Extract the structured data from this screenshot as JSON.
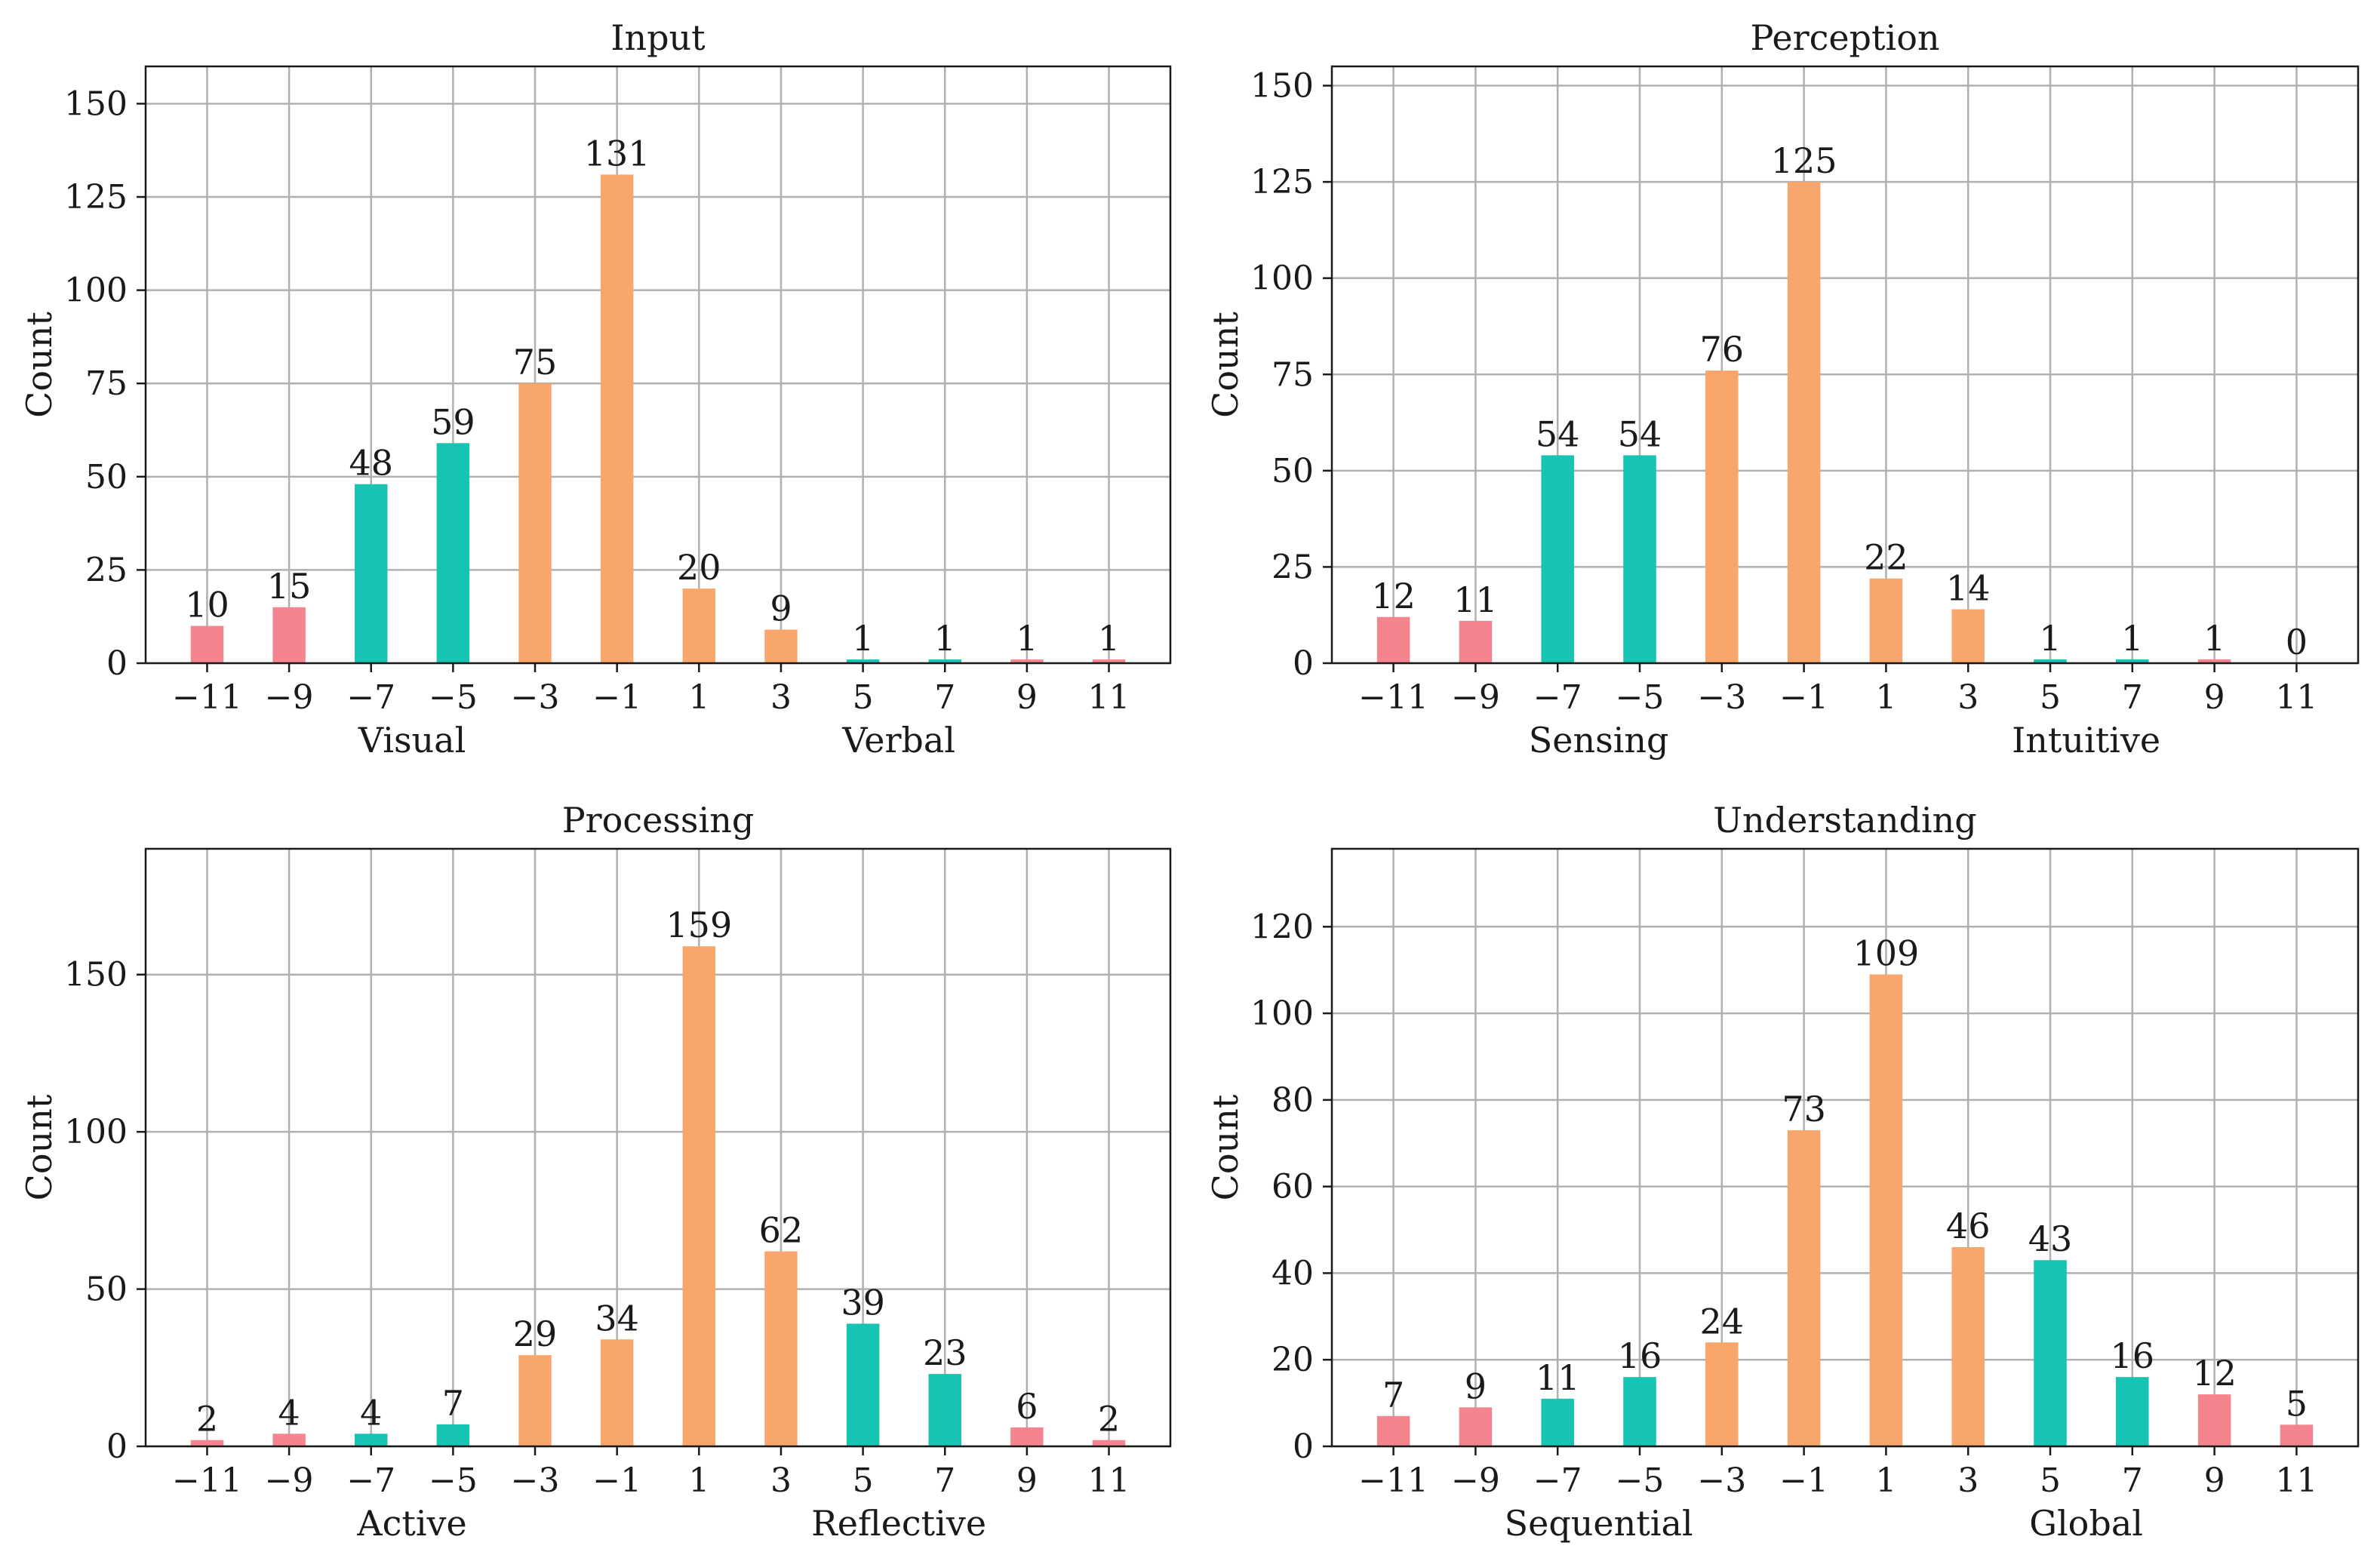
{
  "chart_data": [
    {
      "type": "bar",
      "title": "Input",
      "ylabel": "Count",
      "xlabel_left": "Visual",
      "xlabel_right": "Verbal",
      "categories": [
        "−11",
        "−9",
        "−7",
        "−5",
        "−3",
        "−1",
        "1",
        "3",
        "5",
        "7",
        "9",
        "11"
      ],
      "values": [
        10,
        15,
        48,
        59,
        75,
        131,
        20,
        9,
        1,
        1,
        1,
        1
      ],
      "value_labels": [
        "10",
        "15",
        "48",
        "59",
        "75",
        "131",
        "20",
        "9",
        "1",
        "1",
        "1",
        "1"
      ],
      "bar_colors": [
        "#f4858e",
        "#f4858e",
        "#17c3b2",
        "#17c3b2",
        "#f9a66c",
        "#f9a66c",
        "#f9a66c",
        "#f9a66c",
        "#17c3b2",
        "#17c3b2",
        "#f4858e",
        "#f4858e"
      ],
      "ylim": [
        0,
        160
      ],
      "yticks": [
        0,
        25,
        50,
        75,
        100,
        125,
        150
      ],
      "ytick_labels": [
        "0",
        "25",
        "50",
        "75",
        "100",
        "125",
        "150"
      ],
      "grid": true
    },
    {
      "type": "bar",
      "title": "Perception",
      "ylabel": "Count",
      "xlabel_left": "Sensing",
      "xlabel_right": "Intuitive",
      "categories": [
        "−11",
        "−9",
        "−7",
        "−5",
        "−3",
        "−1",
        "1",
        "3",
        "5",
        "7",
        "9",
        "11"
      ],
      "values": [
        12,
        11,
        54,
        54,
        76,
        125,
        22,
        14,
        1,
        1,
        1,
        0
      ],
      "value_labels": [
        "12",
        "11",
        "54",
        "54",
        "76",
        "125",
        "22",
        "14",
        "1",
        "1",
        "1",
        "0"
      ],
      "bar_colors": [
        "#f4858e",
        "#f4858e",
        "#17c3b2",
        "#17c3b2",
        "#f9a66c",
        "#f9a66c",
        "#f9a66c",
        "#f9a66c",
        "#17c3b2",
        "#17c3b2",
        "#f4858e",
        "#f4858e"
      ],
      "ylim": [
        0,
        155
      ],
      "yticks": [
        0,
        25,
        50,
        75,
        100,
        125,
        150
      ],
      "ytick_labels": [
        "0",
        "25",
        "50",
        "75",
        "100",
        "125",
        "150"
      ],
      "grid": true
    },
    {
      "type": "bar",
      "title": "Processing",
      "ylabel": "Count",
      "xlabel_left": "Active",
      "xlabel_right": "Reflective",
      "categories": [
        "−11",
        "−9",
        "−7",
        "−5",
        "−3",
        "−1",
        "1",
        "3",
        "5",
        "7",
        "9",
        "11"
      ],
      "values": [
        2,
        4,
        4,
        7,
        29,
        34,
        159,
        62,
        39,
        23,
        6,
        2
      ],
      "value_labels": [
        "2",
        "4",
        "4",
        "7",
        "29",
        "34",
        "159",
        "62",
        "39",
        "23",
        "6",
        "2"
      ],
      "bar_colors": [
        "#f4858e",
        "#f4858e",
        "#17c3b2",
        "#17c3b2",
        "#f9a66c",
        "#f9a66c",
        "#f9a66c",
        "#f9a66c",
        "#17c3b2",
        "#17c3b2",
        "#f4858e",
        "#f4858e"
      ],
      "ylim": [
        0,
        190
      ],
      "yticks": [
        0,
        50,
        100,
        150
      ],
      "ytick_labels": [
        "0",
        "50",
        "100",
        "150"
      ],
      "grid": true
    },
    {
      "type": "bar",
      "title": "Understanding",
      "ylabel": "Count",
      "xlabel_left": "Sequential",
      "xlabel_right": "Global",
      "categories": [
        "−11",
        "−9",
        "−7",
        "−5",
        "−3",
        "−1",
        "1",
        "3",
        "5",
        "7",
        "9",
        "11"
      ],
      "values": [
        7,
        9,
        11,
        16,
        24,
        73,
        109,
        46,
        43,
        16,
        12,
        5
      ],
      "value_labels": [
        "7",
        "9",
        "11",
        "16",
        "24",
        "73",
        "109",
        "46",
        "43",
        "16",
        "12",
        "5"
      ],
      "bar_colors": [
        "#f4858e",
        "#f4858e",
        "#17c3b2",
        "#17c3b2",
        "#f9a66c",
        "#f9a66c",
        "#f9a66c",
        "#f9a66c",
        "#17c3b2",
        "#17c3b2",
        "#f4858e",
        "#f4858e"
      ],
      "ylim": [
        0,
        138
      ],
      "yticks": [
        0,
        20,
        40,
        60,
        80,
        100,
        120
      ],
      "ytick_labels": [
        "0",
        "20",
        "40",
        "60",
        "80",
        "100",
        "120"
      ],
      "grid": true
    }
  ]
}
